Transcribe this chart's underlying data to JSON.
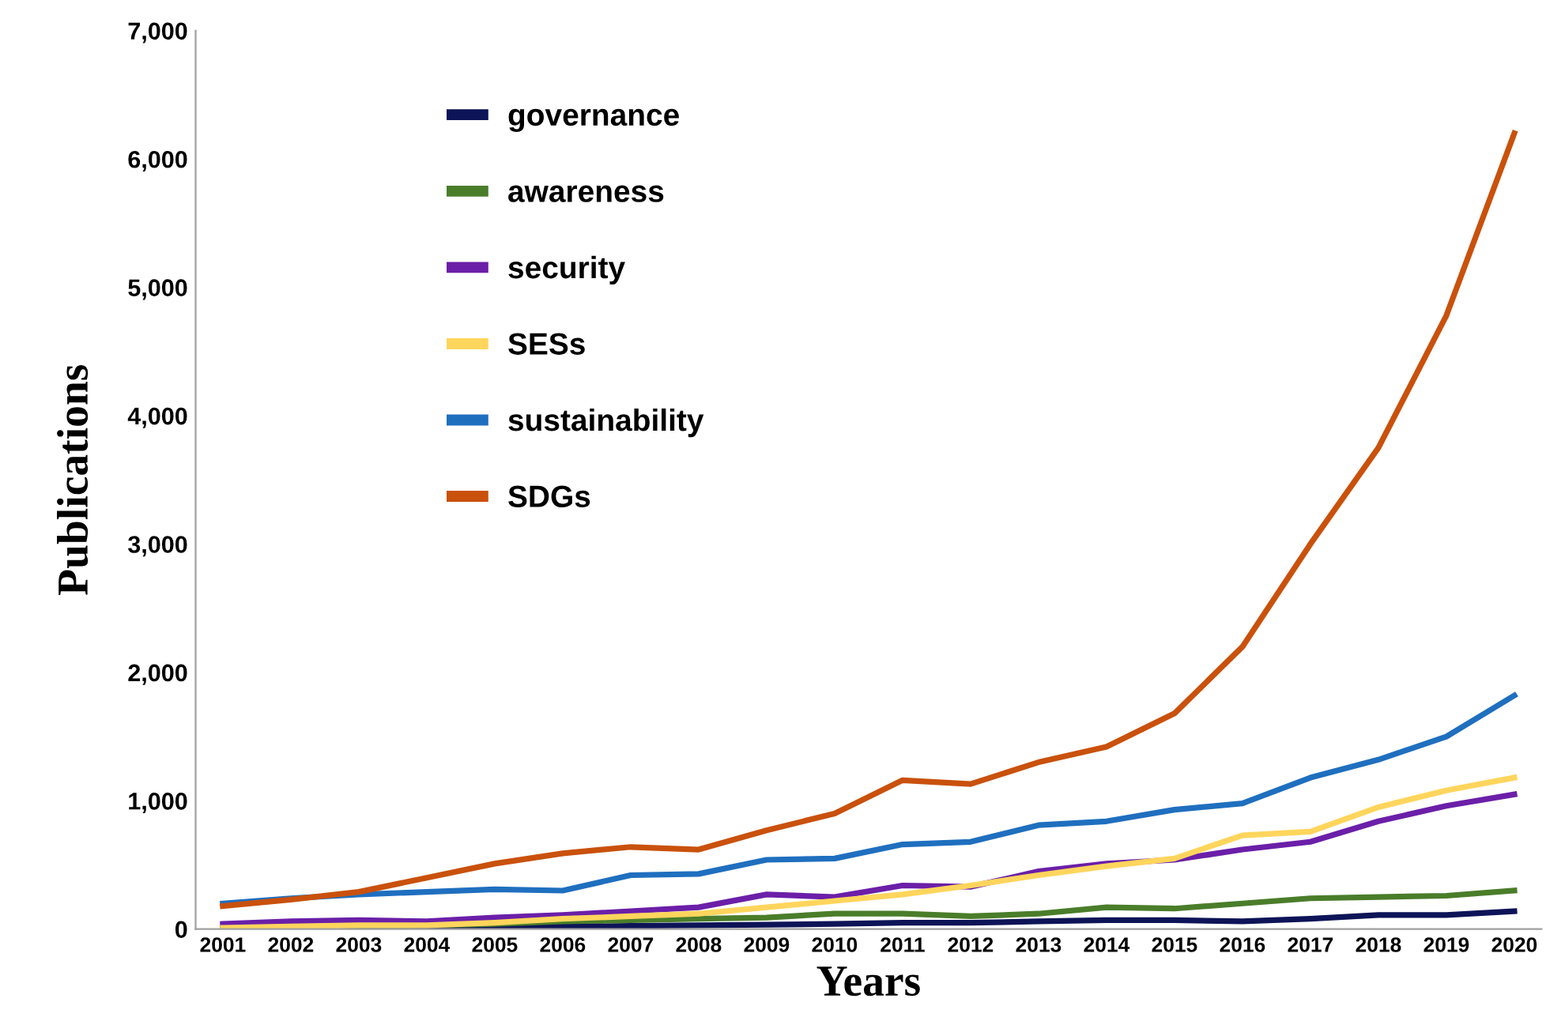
{
  "chart_data": {
    "type": "line",
    "xlabel": "Years",
    "ylabel": "Publications",
    "categories": [
      "2001",
      "2002",
      "2003",
      "2004",
      "2005",
      "2006",
      "2007",
      "2008",
      "2009",
      "2010",
      "2011",
      "2012",
      "2013",
      "2014",
      "2015",
      "2016",
      "2017",
      "2018",
      "2019",
      "2020"
    ],
    "ylim": [
      0,
      7000
    ],
    "yticks": [
      {
        "value": 0,
        "label": "0"
      },
      {
        "value": 1000,
        "label": "1,000"
      },
      {
        "value": 2000,
        "label": "2,000"
      },
      {
        "value": 3000,
        "label": "3,000"
      },
      {
        "value": 4000,
        "label": "4,000"
      },
      {
        "value": 5000,
        "label": "5,000"
      },
      {
        "value": 6000,
        "label": "6,000"
      },
      {
        "value": 7000,
        "label": "7,000"
      }
    ],
    "grid": false,
    "legend": "top left",
    "marker": "none",
    "line_style": "solid",
    "series": [
      {
        "name": "governance",
        "color": "#0d1457",
        "values": [
          5,
          10,
          10,
          10,
          15,
          20,
          25,
          30,
          35,
          40,
          50,
          50,
          60,
          70,
          70,
          60,
          80,
          110,
          110,
          140
        ]
      },
      {
        "name": "awareness",
        "color": "#4a7d2a",
        "values": [
          10,
          20,
          20,
          30,
          40,
          60,
          70,
          80,
          90,
          120,
          120,
          100,
          120,
          170,
          160,
          200,
          240,
          250,
          260,
          300
        ]
      },
      {
        "name": "security",
        "color": "#6b1fa8",
        "values": [
          40,
          60,
          70,
          60,
          90,
          110,
          140,
          170,
          270,
          250,
          340,
          330,
          450,
          510,
          540,
          620,
          680,
          840,
          960,
          1050
        ]
      },
      {
        "name": "SESs",
        "color": "#ffd55c",
        "values": [
          10,
          20,
          30,
          30,
          50,
          80,
          100,
          120,
          170,
          220,
          270,
          340,
          420,
          490,
          550,
          730,
          760,
          950,
          1080,
          1180
        ]
      },
      {
        "name": "sustainability",
        "color": "#1f6fbf",
        "values": [
          200,
          240,
          270,
          290,
          310,
          300,
          420,
          430,
          540,
          550,
          660,
          680,
          810,
          840,
          930,
          980,
          1180,
          1320,
          1500,
          1820
        ]
      },
      {
        "name": "SDGs",
        "color": "#c9510c",
        "values": [
          180,
          230,
          290,
          400,
          510,
          590,
          640,
          620,
          770,
          900,
          1160,
          1130,
          1300,
          1420,
          1680,
          2200,
          3000,
          3750,
          4780,
          6200
        ]
      }
    ]
  }
}
